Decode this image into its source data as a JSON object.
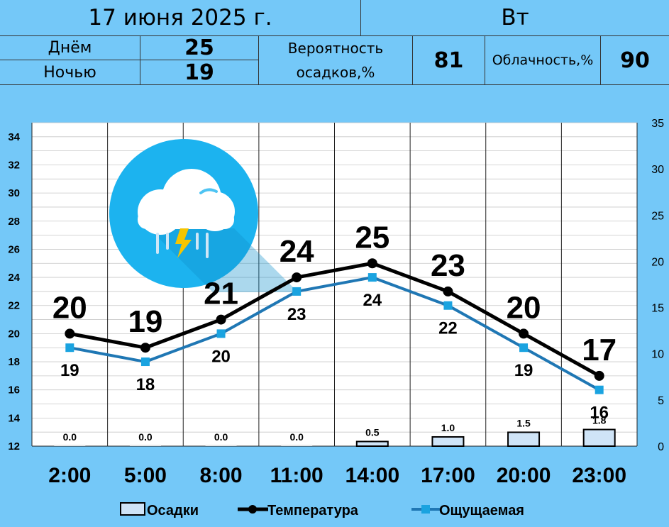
{
  "header": {
    "date": "17 июня 2025 г.",
    "weekday": "Вт",
    "day_label": "Днём",
    "day_value": "25",
    "night_label": "Ночью",
    "night_value": "19",
    "precip_label_1": "Вероятность",
    "precip_label_2": "осадков,%",
    "precip_value": "81",
    "cloud_label": "Облачность,%",
    "cloud_value": "90"
  },
  "weather_icon": "thunderstorm-rain-cloud-icon",
  "colors": {
    "background": "#74c8f8",
    "temperature_line": "#000000",
    "feels_line": "#1f77b4",
    "feels_marker": "#1aa3e0",
    "bar_fill": "#cfe4f7",
    "icon_circle": "#1cb3ef",
    "plot_bg": "#ffffff"
  },
  "chart_data": {
    "type": "line",
    "categories": [
      "2:00",
      "5:00",
      "8:00",
      "11:00",
      "14:00",
      "17:00",
      "20:00",
      "23:00"
    ],
    "series": [
      {
        "name": "Температура",
        "values": [
          20,
          19,
          21,
          24,
          25,
          23,
          20,
          17
        ],
        "axis": "left"
      },
      {
        "name": "Ощущаемая",
        "values": [
          19,
          18,
          20,
          23,
          24,
          22,
          19,
          16
        ],
        "axis": "left"
      },
      {
        "name": "Осадки",
        "type": "bar",
        "values": [
          0.0,
          0.0,
          0.0,
          0.0,
          0.5,
          1.0,
          1.5,
          1.8
        ],
        "labels": [
          "0.0",
          "0.0",
          "0.0",
          "0.0",
          "0.5",
          "1.0",
          "1.5",
          "1.8"
        ],
        "axis": "right"
      }
    ],
    "y_left": {
      "min": 12,
      "max": 35,
      "ticks": [
        12,
        14,
        16,
        18,
        20,
        22,
        24,
        26,
        28,
        30,
        32,
        34
      ]
    },
    "y_right": {
      "min": 0,
      "max": 35,
      "ticks": [
        0,
        5,
        10,
        15,
        20,
        25,
        30,
        35
      ]
    },
    "legend": {
      "position": "bottom",
      "items": [
        "Осадки",
        "Температура",
        "Ощущаемая"
      ]
    },
    "grid": true
  }
}
